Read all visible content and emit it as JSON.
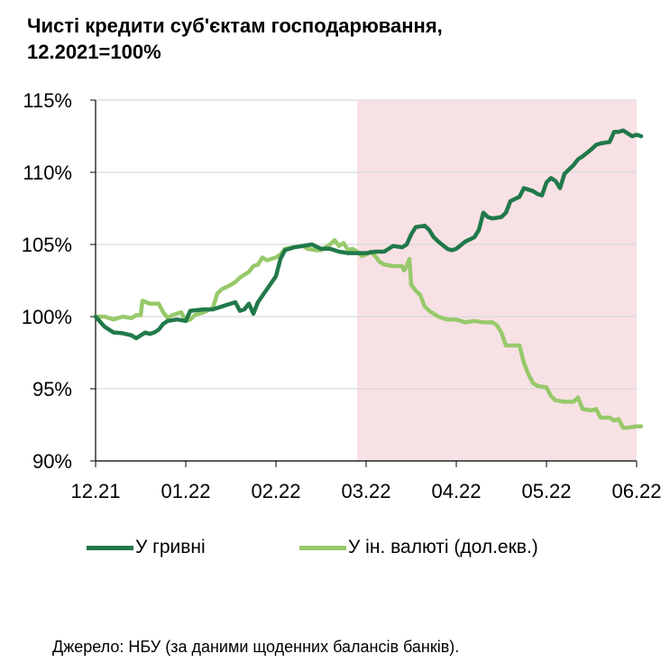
{
  "title": {
    "line1": "Чисті кредити суб'єктам господарювання,",
    "line2": "12.2021=100%"
  },
  "source": "Джерело: НБУ (за даними щоденних балансів банків).",
  "colors": {
    "uah": "#21794a",
    "fx": "#97c96a",
    "shade": "#f8e1e4",
    "axis": "#000000",
    "grid": "#d9d9d9"
  },
  "chart_data": {
    "type": "line",
    "x_ticks": [
      "12.21",
      "01.22",
      "02.22",
      "03.22",
      "04.22",
      "05.22",
      "06.22"
    ],
    "y_ticks": [
      "90%",
      "95%",
      "100%",
      "105%",
      "110%",
      "115%"
    ],
    "ylim": [
      90,
      115
    ],
    "xlim": [
      0,
      6
    ],
    "shaded_region": [
      2.9,
      6.05
    ],
    "grid": "horizontal",
    "legend_position": "bottom",
    "series": [
      {
        "name": "У гривні",
        "color": "#21794a",
        "points": [
          [
            0.0,
            100.0
          ],
          [
            0.1,
            99.3
          ],
          [
            0.2,
            98.9
          ],
          [
            0.3,
            98.85
          ],
          [
            0.4,
            98.7
          ],
          [
            0.45,
            98.5
          ],
          [
            0.5,
            98.7
          ],
          [
            0.55,
            98.9
          ],
          [
            0.6,
            98.8
          ],
          [
            0.65,
            98.9
          ],
          [
            0.7,
            99.1
          ],
          [
            0.75,
            99.5
          ],
          [
            0.8,
            99.7
          ],
          [
            0.9,
            99.8
          ],
          [
            1.0,
            99.7
          ],
          [
            1.05,
            100.4
          ],
          [
            1.2,
            100.5
          ],
          [
            1.3,
            100.5
          ],
          [
            1.4,
            100.7
          ],
          [
            1.5,
            100.9
          ],
          [
            1.55,
            101.0
          ],
          [
            1.6,
            100.4
          ],
          [
            1.65,
            100.5
          ],
          [
            1.7,
            100.9
          ],
          [
            1.75,
            100.2
          ],
          [
            1.8,
            101.0
          ],
          [
            1.9,
            101.9
          ],
          [
            2.0,
            102.8
          ],
          [
            2.05,
            104.0
          ],
          [
            2.1,
            104.6
          ],
          [
            2.2,
            104.8
          ],
          [
            2.3,
            104.9
          ],
          [
            2.4,
            105.0
          ],
          [
            2.5,
            104.7
          ],
          [
            2.6,
            104.7
          ],
          [
            2.7,
            104.5
          ],
          [
            2.8,
            104.4
          ],
          [
            2.9,
            104.4
          ],
          [
            3.0,
            104.4
          ],
          [
            3.1,
            104.5
          ],
          [
            3.2,
            104.5
          ],
          [
            3.3,
            104.9
          ],
          [
            3.4,
            104.8
          ],
          [
            3.45,
            105.0
          ],
          [
            3.5,
            105.7
          ],
          [
            3.55,
            106.2
          ],
          [
            3.65,
            106.3
          ],
          [
            3.7,
            106.0
          ],
          [
            3.75,
            105.5
          ],
          [
            3.8,
            105.2
          ],
          [
            3.9,
            104.7
          ],
          [
            3.95,
            104.6
          ],
          [
            4.0,
            104.7
          ],
          [
            4.1,
            105.2
          ],
          [
            4.2,
            105.5
          ],
          [
            4.25,
            106.0
          ],
          [
            4.3,
            107.2
          ],
          [
            4.35,
            106.9
          ],
          [
            4.4,
            106.8
          ],
          [
            4.5,
            106.9
          ],
          [
            4.55,
            107.2
          ],
          [
            4.6,
            108.0
          ],
          [
            4.7,
            108.3
          ],
          [
            4.75,
            108.9
          ],
          [
            4.8,
            108.8
          ],
          [
            4.85,
            108.7
          ],
          [
            4.9,
            108.5
          ],
          [
            4.95,
            108.4
          ],
          [
            5.0,
            109.3
          ],
          [
            5.05,
            109.6
          ],
          [
            5.1,
            109.4
          ],
          [
            5.15,
            108.9
          ],
          [
            5.2,
            109.9
          ],
          [
            5.3,
            110.5
          ],
          [
            5.35,
            110.9
          ],
          [
            5.4,
            111.1
          ],
          [
            5.5,
            111.6
          ],
          [
            5.55,
            111.9
          ],
          [
            5.6,
            112.0
          ],
          [
            5.7,
            112.1
          ],
          [
            5.75,
            112.8
          ],
          [
            5.8,
            112.8
          ],
          [
            5.85,
            112.9
          ],
          [
            5.9,
            112.7
          ],
          [
            5.95,
            112.5
          ],
          [
            6.0,
            112.6
          ],
          [
            6.05,
            112.5
          ]
        ]
      },
      {
        "name": "У ін. валюті (дол.екв.)",
        "color": "#97c96a",
        "points": [
          [
            0.0,
            100.0
          ],
          [
            0.1,
            100.0
          ],
          [
            0.2,
            99.8
          ],
          [
            0.3,
            100.0
          ],
          [
            0.4,
            99.9
          ],
          [
            0.45,
            100.1
          ],
          [
            0.5,
            100.1
          ],
          [
            0.52,
            101.1
          ],
          [
            0.6,
            100.9
          ],
          [
            0.7,
            100.9
          ],
          [
            0.75,
            100.3
          ],
          [
            0.8,
            99.9
          ],
          [
            0.85,
            100.1
          ],
          [
            0.95,
            100.3
          ],
          [
            1.0,
            99.7
          ],
          [
            1.05,
            99.8
          ],
          [
            1.1,
            100.1
          ],
          [
            1.2,
            100.3
          ],
          [
            1.3,
            100.6
          ],
          [
            1.35,
            101.6
          ],
          [
            1.4,
            101.9
          ],
          [
            1.5,
            102.2
          ],
          [
            1.55,
            102.4
          ],
          [
            1.6,
            102.7
          ],
          [
            1.7,
            103.1
          ],
          [
            1.75,
            103.5
          ],
          [
            1.8,
            103.6
          ],
          [
            1.85,
            104.1
          ],
          [
            1.9,
            103.9
          ],
          [
            2.0,
            104.1
          ],
          [
            2.05,
            104.3
          ],
          [
            2.1,
            104.7
          ],
          [
            2.2,
            104.8
          ],
          [
            2.3,
            104.9
          ],
          [
            2.35,
            104.7
          ],
          [
            2.45,
            104.6
          ],
          [
            2.5,
            104.6
          ],
          [
            2.6,
            105.0
          ],
          [
            2.65,
            105.3
          ],
          [
            2.7,
            104.9
          ],
          [
            2.75,
            105.1
          ],
          [
            2.8,
            104.6
          ],
          [
            2.85,
            104.7
          ],
          [
            2.9,
            104.5
          ],
          [
            2.95,
            104.2
          ],
          [
            3.0,
            104.3
          ],
          [
            3.05,
            104.5
          ],
          [
            3.1,
            104.2
          ],
          [
            3.15,
            103.8
          ],
          [
            3.2,
            103.6
          ],
          [
            3.3,
            103.5
          ],
          [
            3.4,
            103.5
          ],
          [
            3.42,
            103.2
          ],
          [
            3.45,
            103.5
          ],
          [
            3.48,
            104.0
          ],
          [
            3.5,
            102.2
          ],
          [
            3.55,
            101.8
          ],
          [
            3.6,
            101.5
          ],
          [
            3.65,
            100.7
          ],
          [
            3.7,
            100.4
          ],
          [
            3.8,
            100.0
          ],
          [
            3.9,
            99.8
          ],
          [
            4.0,
            99.8
          ],
          [
            4.1,
            99.6
          ],
          [
            4.2,
            99.7
          ],
          [
            4.3,
            99.6
          ],
          [
            4.4,
            99.6
          ],
          [
            4.45,
            99.4
          ],
          [
            4.5,
            98.9
          ],
          [
            4.55,
            98.0
          ],
          [
            4.6,
            98.0
          ],
          [
            4.7,
            98.0
          ],
          [
            4.75,
            96.8
          ],
          [
            4.8,
            96.0
          ],
          [
            4.85,
            95.4
          ],
          [
            4.9,
            95.2
          ],
          [
            5.0,
            95.1
          ],
          [
            5.05,
            94.5
          ],
          [
            5.1,
            94.2
          ],
          [
            5.2,
            94.1
          ],
          [
            5.3,
            94.1
          ],
          [
            5.35,
            94.4
          ],
          [
            5.4,
            93.6
          ],
          [
            5.5,
            93.5
          ],
          [
            5.55,
            93.6
          ],
          [
            5.6,
            93.0
          ],
          [
            5.7,
            93.0
          ],
          [
            5.75,
            92.8
          ],
          [
            5.8,
            92.9
          ],
          [
            5.85,
            92.3
          ],
          [
            5.9,
            92.3
          ],
          [
            6.0,
            92.4
          ],
          [
            6.05,
            92.4
          ]
        ]
      }
    ]
  }
}
